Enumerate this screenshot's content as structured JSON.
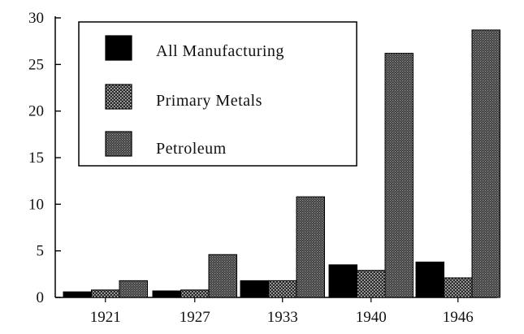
{
  "chart_data": {
    "type": "bar",
    "categories": [
      "1921",
      "1927",
      "1933",
      "1940",
      "1946"
    ],
    "series": [
      {
        "name": "All Manufacturing",
        "values": [
          0.6,
          0.7,
          1.8,
          3.5,
          3.8
        ]
      },
      {
        "name": "Primary Metals",
        "values": [
          0.8,
          0.8,
          1.8,
          2.9,
          2.1
        ]
      },
      {
        "name": "Petroleum",
        "values": [
          1.8,
          4.6,
          10.8,
          26.2,
          28.7
        ]
      }
    ],
    "yticks": [
      "0",
      "5",
      "10",
      "15",
      "20",
      "25",
      "30"
    ],
    "ylim": [
      0,
      30
    ],
    "title": "",
    "xlabel": "",
    "ylabel": "",
    "legend_position": "top-left",
    "grid": false,
    "colors": {
      "All Manufacturing": "#000000",
      "Primary Metals": "#2e2e2e",
      "Petroleum": "#4d4d4d"
    }
  }
}
